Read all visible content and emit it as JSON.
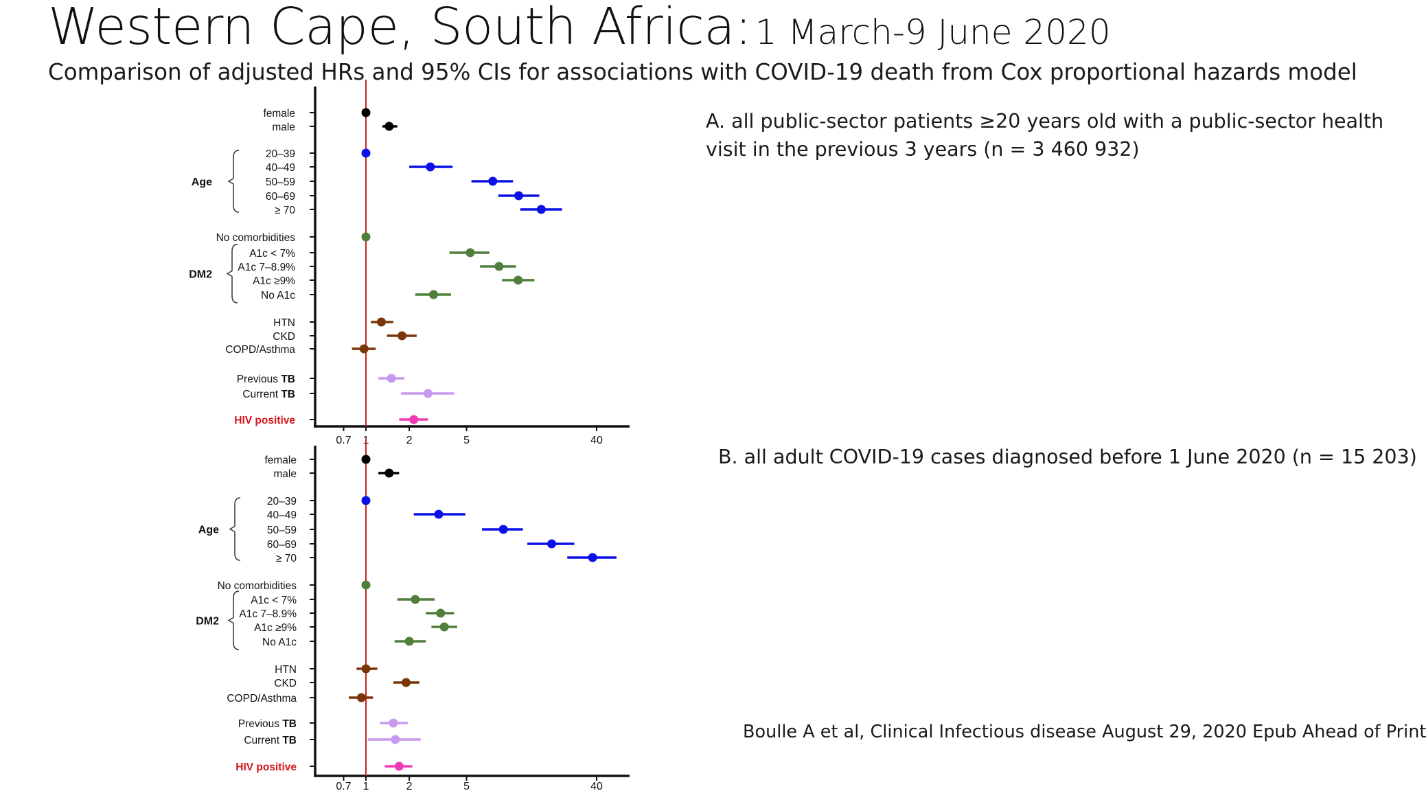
{
  "title": {
    "main": "Western Cape, South Africa:",
    "dates": "1 March-9 June 2020"
  },
  "subtitle": "Comparison of adjusted HRs and 95% CIs for associations with COVID-19 death from Cox proportional hazards model",
  "captions": {
    "a_line1": "A. all public-sector patients ≥20 years old with a public-sector health",
    "a_line2": "visit in the previous 3 years (n = 3 460 932)",
    "b": "B. all adult COVID-19 cases diagnosed before 1 June 2020 (n = 15 203)",
    "citation": "Boulle A et al, Clinical Infectious disease August 29, 2020 Epub Ahead of Print"
  },
  "colors": {
    "sex": "#000000",
    "age": "#0a10e6",
    "comorbidity": "#4f7f3a",
    "other_comorbidity": "#7a3508",
    "tb": "#c79af0",
    "hiv": "#f03cb4",
    "reference_line": "#cc1f1f",
    "hiv_label": "#d4141c"
  },
  "group_labels": {
    "age": "Age",
    "dm2": "DM2"
  },
  "chart_data": [
    {
      "type": "forest",
      "panel": "A",
      "xscale": "log",
      "xticks": [
        "0.7",
        "1",
        "2",
        "5",
        "40"
      ],
      "reference_x": 1,
      "rows": [
        {
          "label": "female",
          "group": "sex",
          "hr": 1.0,
          "lo": 1.0,
          "hi": 1.0
        },
        {
          "label": "male",
          "group": "sex",
          "hr": 1.45,
          "lo": 1.3,
          "hi": 1.65
        },
        {
          "label": "20–39",
          "group": "age",
          "hr": 1.0,
          "lo": 1.0,
          "hi": 1.0
        },
        {
          "label": "40–49",
          "group": "age",
          "hr": 2.8,
          "lo": 2.0,
          "hi": 4.0
        },
        {
          "label": "50–59",
          "group": "age",
          "hr": 7.6,
          "lo": 5.4,
          "hi": 10.5
        },
        {
          "label": "60–69",
          "group": "age",
          "hr": 11.5,
          "lo": 8.3,
          "hi": 16.0
        },
        {
          "label": "≥ 70",
          "group": "age",
          "hr": 16.5,
          "lo": 11.8,
          "hi": 23.0
        },
        {
          "label": "No comorbidities",
          "group": "comorbidity",
          "hr": 1.0,
          "lo": 1.0,
          "hi": 1.0
        },
        {
          "label": "A1c < 7%",
          "group": "comorbidity",
          "hr": 5.3,
          "lo": 3.8,
          "hi": 7.2
        },
        {
          "label": "A1c  7–8.9%",
          "group": "comorbidity",
          "hr": 8.4,
          "lo": 6.2,
          "hi": 11.0
        },
        {
          "label": "A1c  ≥9%",
          "group": "comorbidity",
          "hr": 11.4,
          "lo": 8.8,
          "hi": 14.8
        },
        {
          "label": "No A1c",
          "group": "comorbidity",
          "hr": 2.95,
          "lo": 2.2,
          "hi": 3.9
        },
        {
          "label": "HTN",
          "group": "other_comorbidity",
          "hr": 1.28,
          "lo": 1.08,
          "hi": 1.55
        },
        {
          "label": "CKD",
          "group": "other_comorbidity",
          "hr": 1.78,
          "lo": 1.4,
          "hi": 2.25
        },
        {
          "label": "COPD/Asthma",
          "group": "other_comorbidity",
          "hr": 0.97,
          "lo": 0.8,
          "hi": 1.17
        },
        {
          "label": "Previous TB",
          "group": "tb",
          "hr": 1.5,
          "lo": 1.22,
          "hi": 1.85
        },
        {
          "label": "Current TB",
          "group": "tb",
          "hr": 2.7,
          "lo": 1.75,
          "hi": 4.1
        },
        {
          "label": "HIV positive",
          "group": "hiv",
          "hr": 2.15,
          "lo": 1.7,
          "hi": 2.7
        }
      ]
    },
    {
      "type": "forest",
      "panel": "B",
      "xscale": "log",
      "xticks": [
        "0.7",
        "1",
        "2",
        "5",
        "40"
      ],
      "reference_x": 1,
      "rows": [
        {
          "label": "female",
          "group": "sex",
          "hr": 1.0,
          "lo": 1.0,
          "hi": 1.0
        },
        {
          "label": "male",
          "group": "sex",
          "hr": 1.45,
          "lo": 1.22,
          "hi": 1.7
        },
        {
          "label": "20–39",
          "group": "age",
          "hr": 1.0,
          "lo": 1.0,
          "hi": 1.0
        },
        {
          "label": "40–49",
          "group": "age",
          "hr": 3.2,
          "lo": 2.15,
          "hi": 4.9
        },
        {
          "label": "50–59",
          "group": "age",
          "hr": 9.0,
          "lo": 6.4,
          "hi": 12.3
        },
        {
          "label": "60–69",
          "group": "age",
          "hr": 19.5,
          "lo": 13.2,
          "hi": 28.0
        },
        {
          "label": "≥ 70",
          "group": "age",
          "hr": 37.5,
          "lo": 25.0,
          "hi": 55.0
        },
        {
          "label": "No comorbidities",
          "group": "comorbidity",
          "hr": 1.0,
          "lo": 1.0,
          "hi": 1.0
        },
        {
          "label": "A1c < 7%",
          "group": "comorbidity",
          "hr": 2.2,
          "lo": 1.65,
          "hi": 3.0
        },
        {
          "label": "A1c  7–8.9%",
          "group": "comorbidity",
          "hr": 3.3,
          "lo": 2.6,
          "hi": 4.1
        },
        {
          "label": "A1c  ≥9%",
          "group": "comorbidity",
          "hr": 3.5,
          "lo": 2.85,
          "hi": 4.3
        },
        {
          "label": "No A1c",
          "group": "comorbidity",
          "hr": 2.0,
          "lo": 1.58,
          "hi": 2.6
        },
        {
          "label": "HTN",
          "group": "other_comorbidity",
          "hr": 1.0,
          "lo": 0.86,
          "hi": 1.2
        },
        {
          "label": "CKD",
          "group": "other_comorbidity",
          "hr": 1.9,
          "lo": 1.55,
          "hi": 2.35
        },
        {
          "label": "COPD/Asthma",
          "group": "other_comorbidity",
          "hr": 0.93,
          "lo": 0.76,
          "hi": 1.12
        },
        {
          "label": "Previous TB",
          "group": "tb",
          "hr": 1.55,
          "lo": 1.25,
          "hi": 1.95
        },
        {
          "label": "Current TB",
          "group": "tb",
          "hr": 1.6,
          "lo": 1.03,
          "hi": 2.4
        },
        {
          "label": "HIV positive",
          "group": "hiv",
          "hr": 1.7,
          "lo": 1.35,
          "hi": 2.1
        }
      ]
    }
  ]
}
